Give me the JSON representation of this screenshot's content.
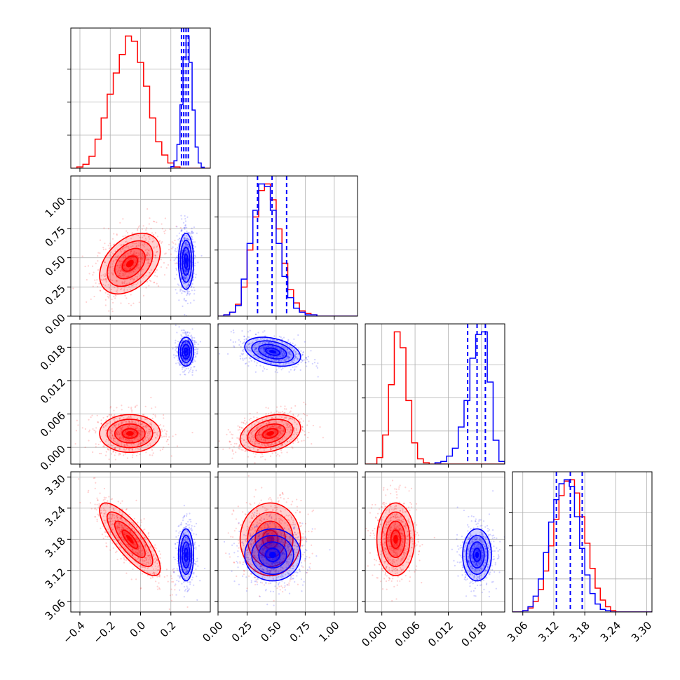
{
  "chart_data": {
    "type": "corner",
    "parameters": [
      {
        "range": [
          -0.46,
          0.46
        ],
        "ticks": [
          -0.4,
          -0.2,
          0.0,
          0.2
        ],
        "tick_labels": [
          "−0.4",
          "−0.2",
          "0.0",
          "0.2"
        ]
      },
      {
        "range": [
          0.0,
          1.2
        ],
        "ticks": [
          0.0,
          0.25,
          0.5,
          0.75,
          1.0
        ],
        "tick_labels": [
          "0.00",
          "0.25",
          "0.50",
          "0.75",
          "1.00"
        ]
      },
      {
        "range": [
          -0.003,
          0.0222
        ],
        "ticks": [
          0.0,
          0.006,
          0.012,
          0.018
        ],
        "tick_labels": [
          "0.000",
          "0.006",
          "0.012",
          "0.018"
        ]
      },
      {
        "range": [
          3.04,
          3.31
        ],
        "ticks": [
          3.06,
          3.12,
          3.18,
          3.24,
          3.3
        ],
        "tick_labels": [
          "3.06",
          "3.12",
          "3.18",
          "3.24",
          "3.30"
        ]
      }
    ],
    "grid": true,
    "series": [
      {
        "color": "#ff0000",
        "mean": [
          -0.07,
          0.45,
          0.0025,
          3.18
        ],
        "sd": [
          0.1,
          0.13,
          0.0017,
          0.035
        ],
        "corr": [
          [
            1,
            0.4,
            0,
            -0.8
          ],
          [
            0.4,
            1,
            0.3,
            0
          ],
          [
            0,
            0.3,
            1,
            0
          ],
          [
            -0.8,
            0,
            0,
            1
          ]
        ],
        "hist_edges": [
          [
            -0.46,
            -0.42,
            -0.38,
            -0.34,
            -0.3,
            -0.26,
            -0.22,
            -0.18,
            -0.14,
            -0.1,
            -0.06,
            -0.02,
            0.02,
            0.06,
            0.1,
            0.14,
            0.18,
            0.22,
            0.26,
            0.3,
            0.34,
            0.38,
            0.42,
            0.46
          ],
          [
            0.0,
            0.05,
            0.1,
            0.15,
            0.2,
            0.25,
            0.3,
            0.35,
            0.4,
            0.45,
            0.5,
            0.55,
            0.6,
            0.65,
            0.7,
            0.75,
            0.8,
            0.85,
            0.9,
            0.95,
            1.0,
            1.05,
            1.1,
            1.15,
            1.2
          ],
          [
            -0.003,
            -0.00195,
            -0.0009,
            0.00015,
            0.0012,
            0.00225,
            0.0033,
            0.00435,
            0.0054,
            0.00645,
            0.0075,
            0.00855,
            0.0096,
            0.01065,
            0.0117,
            0.01275,
            0.0138,
            0.01485,
            0.0159,
            0.01695,
            0.018,
            0.01905,
            0.0201,
            0.02115,
            0.0222
          ],
          [
            3.04,
            3.05,
            3.06,
            3.07,
            3.08,
            3.09,
            3.1,
            3.11,
            3.12,
            3.13,
            3.14,
            3.15,
            3.16,
            3.17,
            3.18,
            3.19,
            3.2,
            3.21,
            3.22,
            3.23,
            3.24,
            3.25,
            3.26,
            3.27,
            3.28,
            3.29,
            3.3,
            3.31
          ]
        ],
        "hist_counts": [
          [
            0,
            1,
            3,
            9,
            22,
            38,
            56,
            72,
            86,
            100,
            96,
            80,
            62,
            38,
            20,
            10,
            4,
            1,
            0,
            0,
            0,
            0,
            0
          ],
          [
            0,
            1,
            3,
            9,
            22,
            50,
            75,
            95,
            100,
            88,
            66,
            40,
            20,
            10,
            4,
            2,
            1,
            0,
            0,
            0,
            0,
            0,
            0,
            0
          ],
          [
            0,
            0,
            5,
            22,
            60,
            100,
            88,
            48,
            16,
            4,
            1,
            0,
            0,
            0,
            0,
            0,
            0,
            0,
            0,
            0,
            0,
            0,
            0,
            0
          ],
          [
            0,
            0,
            1,
            3,
            8,
            17,
            31,
            50,
            70,
            88,
            99,
            100,
            90,
            72,
            52,
            33,
            18,
            9,
            4,
            1,
            0,
            0,
            0,
            0,
            0,
            0,
            0
          ]
        ]
      },
      {
        "color": "#0000ff",
        "mean": [
          0.3,
          0.47,
          0.0172,
          3.15
        ],
        "sd": [
          0.025,
          0.12,
          0.0013,
          0.025
        ],
        "corr": [
          [
            1,
            0,
            0,
            0
          ],
          [
            0,
            1,
            -0.35,
            0
          ],
          [
            0,
            -0.35,
            1,
            0
          ],
          [
            0,
            0,
            0,
            1
          ]
        ],
        "hist_edges": [
          [
            0.18,
            0.2,
            0.22,
            0.24,
            0.26,
            0.28,
            0.3,
            0.32,
            0.34,
            0.36,
            0.38,
            0.4,
            0.42
          ],
          [
            0.0,
            0.05,
            0.1,
            0.15,
            0.2,
            0.25,
            0.3,
            0.35,
            0.4,
            0.45,
            0.5,
            0.55,
            0.6,
            0.65,
            0.7,
            0.75,
            0.8,
            0.85,
            0.9,
            0.95,
            1.0,
            1.05,
            1.1,
            1.15,
            1.2
          ],
          [
            0.0096,
            0.01065,
            0.0117,
            0.01275,
            0.0138,
            0.01485,
            0.0159,
            0.01695,
            0.018,
            0.01905,
            0.0201,
            0.02115,
            0.0222
          ],
          [
            3.04,
            3.05,
            3.06,
            3.07,
            3.08,
            3.09,
            3.1,
            3.11,
            3.12,
            3.13,
            3.14,
            3.15,
            3.16,
            3.17,
            3.18,
            3.19,
            3.2,
            3.21,
            3.22,
            3.23,
            3.24,
            3.25,
            3.26,
            3.27,
            3.28,
            3.29,
            3.3,
            3.31
          ]
        ],
        "hist_counts": [
          [
            0,
            3,
            14,
            45,
            120,
            210,
            250,
            200,
            110,
            40,
            10,
            2
          ],
          [
            0,
            1,
            3,
            8,
            28,
            55,
            80,
            100,
            98,
            80,
            55,
            30,
            14,
            6,
            3,
            1,
            1,
            0,
            0,
            0,
            0,
            0,
            0,
            0
          ],
          [
            1,
            2,
            6,
            12,
            28,
            48,
            80,
            98,
            100,
            62,
            18,
            2
          ],
          [
            0,
            0,
            1,
            4,
            12,
            25,
            45,
            68,
            85,
            97,
            100,
            95,
            72,
            48,
            28,
            14,
            6,
            2,
            1,
            0,
            0,
            0,
            0,
            0,
            0,
            0,
            0
          ]
        ],
        "quantile_lines": [
          [
            0.27,
            0.285,
            0.3,
            0.315
          ],
          [
            0.34,
            0.465,
            0.59
          ],
          [
            0.0155,
            0.0172,
            0.0187
          ],
          [
            3.125,
            3.152,
            3.175
          ]
        ]
      }
    ]
  }
}
